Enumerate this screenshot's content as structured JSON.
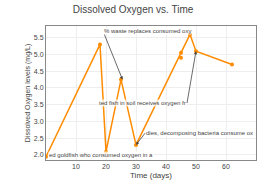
{
  "chart_data": {
    "type": "line",
    "title": "Dissolved Oxygen vs. Time",
    "xlabel": "Time (days)",
    "ylabel": "Dissolved Oxygen levels (mg/L)",
    "series": [
      {
        "type": "line",
        "marker": "circle",
        "color": "#FF8C00",
        "x": [
          0,
          18,
          20,
          25,
          30,
          45,
          48,
          50,
          62
        ],
        "values": [
          1.95,
          5.3,
          2.1,
          4.25,
          2.3,
          5.05,
          5.6,
          5.1,
          4.7
        ]
      },
      {
        "type": "scatter",
        "marker": "circle",
        "color": "#FF8C00",
        "x": [
          45
        ],
        "values": [
          4.9
        ]
      }
    ],
    "xlim": [
      0,
      70
    ],
    "ylim": [
      1.85,
      5.85
    ],
    "xticks": [
      10,
      20,
      30,
      40,
      50,
      60
    ],
    "yticks": [
      {
        "value": 2.0,
        "label": "2.0"
      },
      2.5,
      {
        "value": 3.0,
        "label": "3.0"
      },
      3.5,
      {
        "value": 4.0,
        "label": "4.0"
      },
      4.5,
      {
        "value": 5.0,
        "label": "5.0"
      },
      5.5
    ],
    "grid": true,
    "annotations": [
      {
        "text": "% waste replaces consumed oxy",
        "xy": [
          25.5,
          4.25
        ],
        "xytext": [
          19,
          5.7
        ]
      },
      {
        "text": "ted fish in soil receives oxygen fr",
        "xy": [
          50,
          5.1
        ],
        "xytext": [
          47,
          3.55
        ]
      },
      {
        "text": "dies, decomposing bacteria consume ox",
        "xy": [
          30,
          2.3
        ],
        "xytext": [
          33,
          2.65
        ]
      },
      {
        "text": "ed goldfish who consumed oxygen in a",
        "xytext": [
          0.5,
          1.88
        ]
      }
    ]
  }
}
